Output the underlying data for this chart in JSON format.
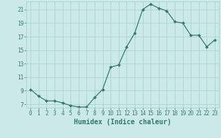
{
  "x": [
    0,
    1,
    2,
    3,
    4,
    5,
    6,
    7,
    8,
    9,
    10,
    11,
    12,
    13,
    14,
    15,
    16,
    17,
    18,
    19,
    20,
    21,
    22,
    23
  ],
  "y": [
    9.2,
    8.2,
    7.5,
    7.5,
    7.2,
    6.8,
    6.6,
    6.6,
    8.0,
    9.2,
    12.5,
    12.8,
    15.5,
    17.5,
    21.0,
    21.8,
    21.2,
    20.8,
    19.2,
    19.0,
    17.2,
    17.2,
    15.5,
    16.5
  ],
  "line_color": "#2d7a6e",
  "marker": "D",
  "marker_size": 2.0,
  "bg_color": "#cce9e9",
  "grid_color": "#aad0d0",
  "xlabel": "Humidex (Indice chaleur)",
  "xlim": [
    -0.5,
    23.5
  ],
  "ylim": [
    6.5,
    22.2
  ],
  "yticks": [
    7,
    9,
    11,
    13,
    15,
    17,
    19,
    21
  ],
  "xticks": [
    0,
    1,
    2,
    3,
    4,
    5,
    6,
    7,
    8,
    9,
    10,
    11,
    12,
    13,
    14,
    15,
    16,
    17,
    18,
    19,
    20,
    21,
    22,
    23
  ],
  "tick_fontsize": 5.5,
  "label_fontsize": 7.0
}
